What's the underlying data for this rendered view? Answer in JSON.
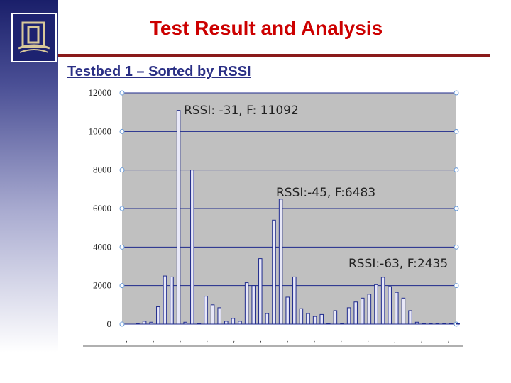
{
  "slide": {
    "title": "Test Result and Analysis",
    "subtitle": "Testbed 1 – Sorted by RSSI",
    "logo_icon": "building-columns-logo-icon"
  },
  "colors": {
    "title": "#cc0000",
    "subtitle": "#2a2f85",
    "plot_background": "#c0c0c0",
    "bar_fill": "#e8e8f8",
    "bar_stroke": "#1e2a8c",
    "grid": "#1e2a8c"
  },
  "chart_data": {
    "type": "bar",
    "title": "",
    "xlabel": "",
    "ylabel": "",
    "ylim": [
      0,
      12000
    ],
    "yticks": [
      0,
      2000,
      4000,
      6000,
      8000,
      10000,
      12000
    ],
    "grid": true,
    "values": [
      0,
      150,
      100,
      900,
      2500,
      2450,
      11092,
      100,
      8000,
      0,
      1450,
      1000,
      850,
      150,
      300,
      150,
      2150,
      2000,
      3400,
      550,
      5400,
      6483,
      1400,
      2450,
      800,
      550,
      400,
      500,
      0,
      700,
      0,
      850,
      1150,
      1350,
      1550,
      2050,
      2435,
      1950,
      1650,
      1350,
      700,
      100,
      0,
      0,
      0,
      0,
      0,
      0
    ],
    "annotations": [
      {
        "text": "RSSI: -31, F: 11092"
      },
      {
        "text": "RSSI:-45, F:6483"
      },
      {
        "text": "RSSI:-63, F:2435"
      }
    ]
  }
}
